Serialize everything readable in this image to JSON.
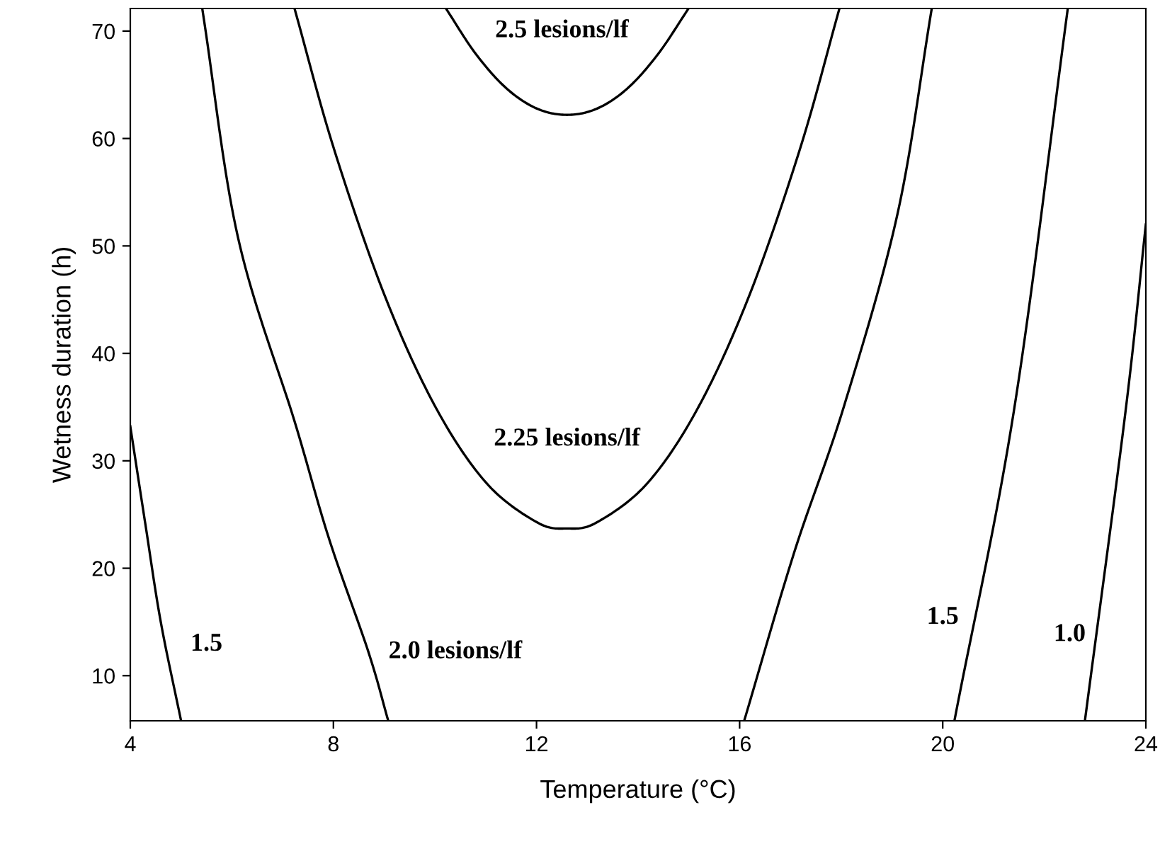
{
  "chart_data": {
    "type": "line",
    "xlabel": "Temperature (°C)",
    "ylabel": "Wetness duration (h)",
    "xlim": [
      4,
      24
    ],
    "ylim": [
      5.8,
      72.1
    ],
    "xticks": [
      4,
      8,
      12,
      16,
      20,
      24
    ],
    "yticks": [
      10,
      20,
      30,
      40,
      50,
      60,
      70
    ],
    "grid": false,
    "legend": false,
    "marker": "none",
    "line_style": "solid",
    "series": [
      {
        "name": "1.5",
        "color": "#000000",
        "x": [
          4,
          4.3,
          4.6,
          5.0
        ],
        "values": [
          33.2,
          24,
          15,
          5.8
        ]
      },
      {
        "name": "2.0 lesions/lf",
        "color": "#000000",
        "x": [
          5.42,
          6.12,
          7.24,
          7.91,
          8.69,
          9.08
        ],
        "values": [
          72,
          50.8,
          33.6,
          22.8,
          12.2,
          5.8
        ]
      },
      {
        "name": "2.25 lesions/lf",
        "color": "#000000",
        "x": [
          7.24,
          8.0,
          9.0,
          10.0,
          11.0,
          12.0,
          12.6,
          13.2,
          14.2,
          15.2,
          16.2,
          17.2,
          17.96
        ],
        "values": [
          72,
          59.2,
          45.5,
          35.1,
          28.0,
          24.3,
          23.7,
          24.3,
          28.0,
          35.1,
          45.5,
          59.2,
          72
        ]
      },
      {
        "name": "2.5 lesions/lf",
        "color": "#000000",
        "x": [
          10.23,
          10.8,
          11.4,
          12.0,
          12.6,
          13.2,
          13.8,
          14.4,
          14.98
        ],
        "values": [
          72,
          67.9,
          64.7,
          62.8,
          62.2,
          62.8,
          64.7,
          67.9,
          72
        ]
      },
      {
        "color": "#000000",
        "x": [
          16.09,
          17.07,
          18.05,
          19.11,
          19.78
        ],
        "values": [
          5.8,
          21.4,
          35,
          53,
          72
        ]
      },
      {
        "name": "1.5",
        "color": "#000000",
        "x": [
          20.23,
          21.4,
          22.46
        ],
        "values": [
          5.8,
          34.6,
          72
        ]
      },
      {
        "name": "1.0",
        "color": "#000000",
        "x": [
          22.8,
          23.6,
          24
        ],
        "values": [
          5.8,
          34.6,
          52.0
        ]
      }
    ]
  }
}
